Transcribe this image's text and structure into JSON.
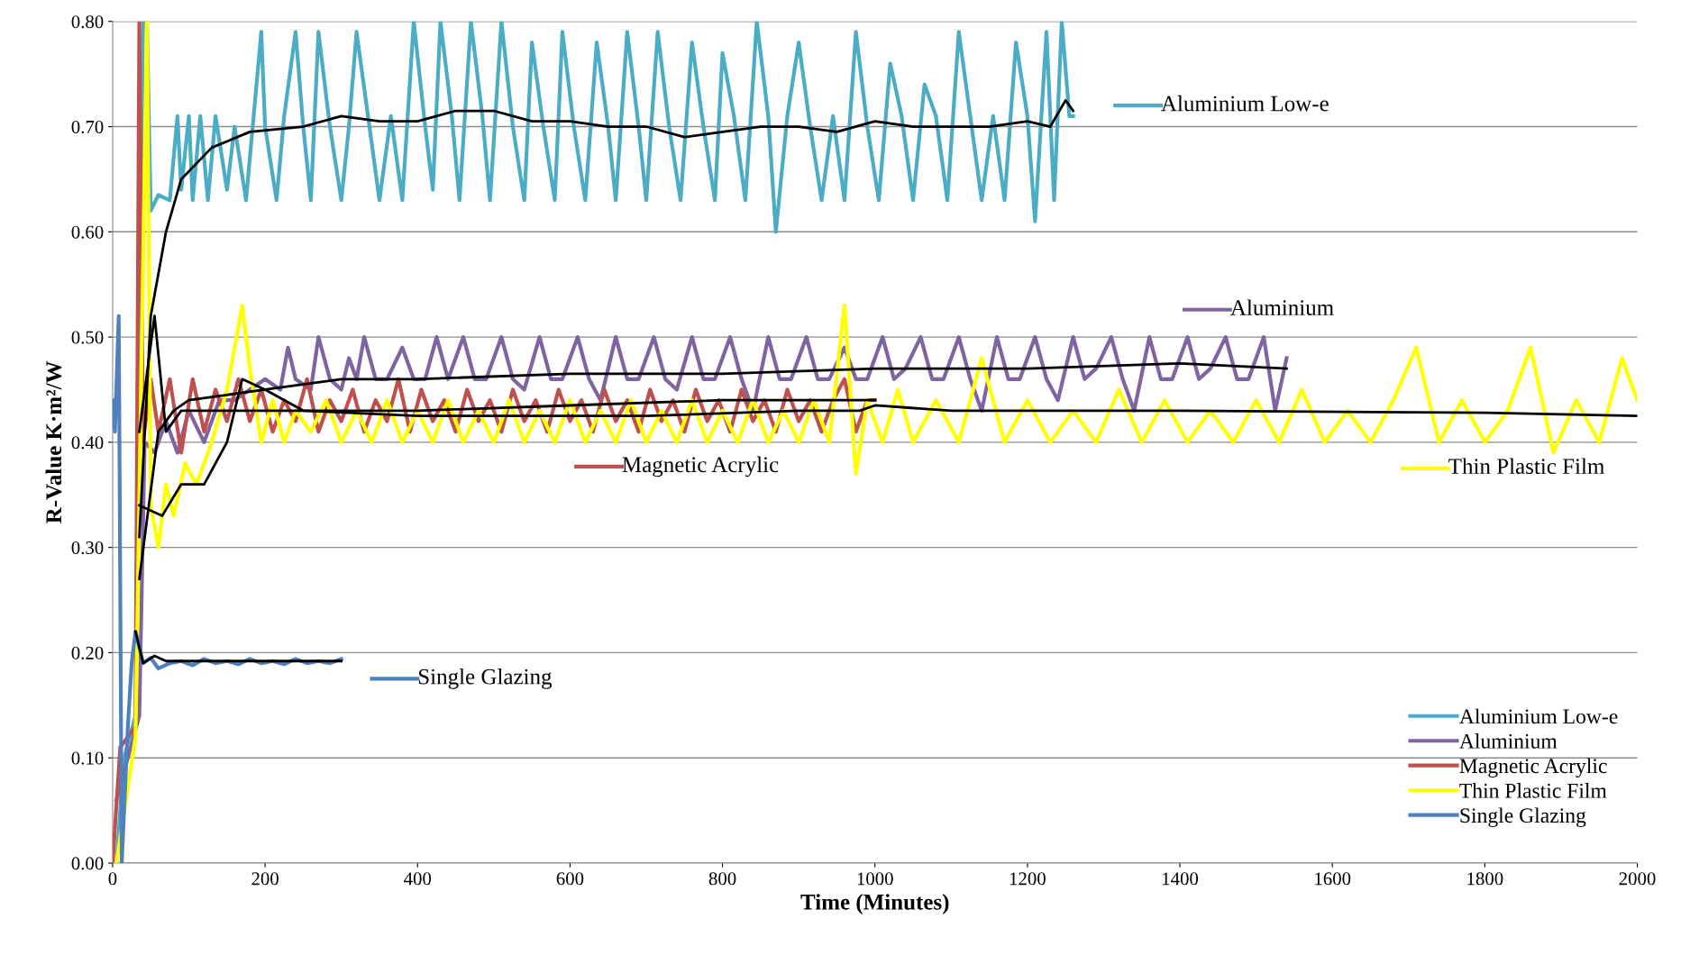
{
  "chart_data": {
    "type": "line",
    "xlabel": "Time (Minutes)",
    "ylabel": "R-Value K·m²/W",
    "xlim": [
      0,
      2000
    ],
    "xticks": [
      0,
      200,
      400,
      600,
      800,
      1000,
      1200,
      1400,
      1600,
      1800,
      2000
    ],
    "ylim": [
      0,
      0.8
    ],
    "yticks": [
      {
        "value": 0,
        "label": "0.00"
      },
      {
        "value": 0.1,
        "label": "0.10"
      },
      {
        "value": 0.2,
        "label": "0.20"
      },
      {
        "value": 0.3,
        "label": "0.30"
      },
      {
        "value": 0.4,
        "label": "0.40"
      },
      {
        "value": 0.5,
        "label": "0.50"
      },
      {
        "value": 0.6,
        "label": "0.60"
      },
      {
        "value": 0.7,
        "label": "0.70"
      },
      {
        "value": 0.8,
        "label": "0.80"
      }
    ],
    "grid": "y",
    "legend": "bottom right",
    "marker": "none",
    "line_style": "solid",
    "series": [
      {
        "name": "Aluminium Low-e",
        "color": "#4bacc6",
        "x": [
          5,
          15,
          30,
          40,
          45,
          50,
          60,
          75,
          85,
          90,
          100,
          105,
          115,
          125,
          135,
          150,
          160,
          175,
          185,
          195,
          200,
          215,
          225,
          240,
          250,
          260,
          270,
          285,
          300,
          310,
          320,
          335,
          350,
          365,
          380,
          395,
          410,
          420,
          430,
          445,
          455,
          470,
          485,
          495,
          510,
          525,
          540,
          550,
          565,
          580,
          590,
          605,
          620,
          635,
          650,
          660,
          675,
          690,
          700,
          715,
          730,
          745,
          760,
          775,
          790,
          800,
          815,
          830,
          845,
          860,
          870,
          885,
          900,
          915,
          930,
          945,
          960,
          975,
          990,
          1005,
          1020,
          1035,
          1050,
          1065,
          1080,
          1095,
          1110,
          1125,
          1140,
          1155,
          1170,
          1185,
          1200,
          1210,
          1225,
          1235,
          1245,
          1255,
          1260
        ],
        "values": [
          0.0,
          0.1,
          0.14,
          0.8,
          0.8,
          0.62,
          0.635,
          0.63,
          0.71,
          0.64,
          0.71,
          0.63,
          0.71,
          0.63,
          0.71,
          0.64,
          0.7,
          0.63,
          0.71,
          0.79,
          0.7,
          0.63,
          0.71,
          0.79,
          0.7,
          0.63,
          0.79,
          0.7,
          0.63,
          0.7,
          0.79,
          0.71,
          0.63,
          0.71,
          0.63,
          0.8,
          0.7,
          0.64,
          0.8,
          0.71,
          0.63,
          0.8,
          0.71,
          0.63,
          0.8,
          0.7,
          0.63,
          0.78,
          0.7,
          0.63,
          0.79,
          0.7,
          0.63,
          0.78,
          0.7,
          0.63,
          0.79,
          0.7,
          0.63,
          0.79,
          0.7,
          0.63,
          0.78,
          0.7,
          0.63,
          0.77,
          0.71,
          0.63,
          0.8,
          0.71,
          0.6,
          0.71,
          0.78,
          0.7,
          0.63,
          0.71,
          0.63,
          0.79,
          0.7,
          0.63,
          0.76,
          0.71,
          0.63,
          0.74,
          0.71,
          0.63,
          0.79,
          0.71,
          0.63,
          0.71,
          0.63,
          0.78,
          0.71,
          0.61,
          0.79,
          0.63,
          0.8,
          0.71,
          0.71
        ]
      },
      {
        "name": "Aluminium",
        "color": "#8064a2",
        "x": [
          5,
          20,
          35,
          42,
          55,
          70,
          85,
          100,
          120,
          140,
          160,
          180,
          200,
          220,
          230,
          240,
          260,
          270,
          285,
          300,
          310,
          320,
          330,
          345,
          360,
          380,
          395,
          410,
          425,
          440,
          460,
          475,
          490,
          510,
          525,
          540,
          560,
          575,
          590,
          610,
          625,
          640,
          660,
          675,
          690,
          710,
          725,
          740,
          760,
          775,
          790,
          810,
          825,
          840,
          860,
          875,
          890,
          910,
          925,
          940,
          960,
          975,
          990,
          1010,
          1025,
          1040,
          1060,
          1075,
          1090,
          1110,
          1125,
          1140,
          1160,
          1175,
          1190,
          1210,
          1225,
          1240,
          1260,
          1275,
          1290,
          1310,
          1325,
          1340,
          1360,
          1375,
          1390,
          1410,
          1425,
          1440,
          1460,
          1475,
          1490,
          1510,
          1525,
          1540
        ],
        "values": [
          0.06,
          0.1,
          0.14,
          0.4,
          0.39,
          0.42,
          0.39,
          0.43,
          0.4,
          0.44,
          0.44,
          0.45,
          0.46,
          0.45,
          0.49,
          0.46,
          0.45,
          0.5,
          0.46,
          0.45,
          0.48,
          0.46,
          0.5,
          0.46,
          0.46,
          0.49,
          0.46,
          0.46,
          0.5,
          0.46,
          0.5,
          0.46,
          0.46,
          0.5,
          0.46,
          0.45,
          0.5,
          0.46,
          0.46,
          0.5,
          0.46,
          0.44,
          0.5,
          0.46,
          0.46,
          0.5,
          0.46,
          0.45,
          0.5,
          0.46,
          0.46,
          0.5,
          0.46,
          0.43,
          0.5,
          0.46,
          0.46,
          0.5,
          0.46,
          0.46,
          0.49,
          0.46,
          0.46,
          0.5,
          0.46,
          0.47,
          0.5,
          0.46,
          0.46,
          0.5,
          0.46,
          0.43,
          0.5,
          0.46,
          0.46,
          0.5,
          0.46,
          0.44,
          0.5,
          0.46,
          0.47,
          0.5,
          0.46,
          0.43,
          0.5,
          0.46,
          0.46,
          0.5,
          0.46,
          0.47,
          0.5,
          0.46,
          0.46,
          0.5,
          0.43,
          0.48
        ]
      },
      {
        "name": "Magnetic Acrylic",
        "color": "#c0504d",
        "x": [
          0,
          10,
          30,
          35,
          40,
          50,
          60,
          75,
          90,
          105,
          120,
          135,
          150,
          165,
          180,
          195,
          210,
          225,
          240,
          255,
          270,
          285,
          300,
          315,
          330,
          345,
          360,
          375,
          390,
          405,
          420,
          435,
          450,
          465,
          480,
          495,
          510,
          525,
          540,
          555,
          570,
          585,
          600,
          615,
          630,
          645,
          660,
          675,
          690,
          705,
          720,
          735,
          750,
          765,
          780,
          795,
          810,
          825,
          840,
          855,
          870,
          885,
          900,
          915,
          930,
          945,
          960,
          975,
          990,
          1000
        ],
        "values": [
          0.0,
          0.11,
          0.13,
          0.8,
          0.4,
          0.46,
          0.41,
          0.46,
          0.39,
          0.46,
          0.41,
          0.45,
          0.42,
          0.46,
          0.42,
          0.45,
          0.41,
          0.44,
          0.42,
          0.46,
          0.41,
          0.44,
          0.42,
          0.45,
          0.41,
          0.44,
          0.42,
          0.46,
          0.41,
          0.45,
          0.42,
          0.44,
          0.41,
          0.45,
          0.42,
          0.44,
          0.41,
          0.45,
          0.42,
          0.44,
          0.41,
          0.45,
          0.42,
          0.44,
          0.41,
          0.45,
          0.42,
          0.44,
          0.41,
          0.45,
          0.42,
          0.44,
          0.41,
          0.45,
          0.42,
          0.44,
          0.41,
          0.45,
          0.42,
          0.44,
          0.41,
          0.45,
          0.42,
          0.44,
          0.41,
          0.44,
          0.46,
          0.41,
          0.44,
          0.44
        ]
      },
      {
        "name": "Thin Plastic Film",
        "color": "#ffff00",
        "x": [
          5,
          30,
          45,
          50,
          60,
          70,
          80,
          95,
          110,
          130,
          150,
          170,
          180,
          195,
          210,
          225,
          240,
          260,
          280,
          300,
          320,
          340,
          360,
          380,
          400,
          420,
          440,
          460,
          480,
          500,
          520,
          540,
          560,
          580,
          600,
          620,
          640,
          660,
          680,
          700,
          720,
          740,
          760,
          780,
          800,
          820,
          840,
          860,
          880,
          900,
          920,
          940,
          960,
          975,
          990,
          1010,
          1030,
          1050,
          1080,
          1110,
          1140,
          1170,
          1200,
          1230,
          1260,
          1290,
          1320,
          1350,
          1380,
          1410,
          1440,
          1470,
          1500,
          1530,
          1560,
          1590,
          1620,
          1650,
          1680,
          1710,
          1740,
          1770,
          1800,
          1830,
          1860,
          1890,
          1920,
          1950,
          1980,
          2000
        ],
        "values": [
          0.0,
          0.12,
          0.8,
          0.34,
          0.3,
          0.36,
          0.33,
          0.38,
          0.36,
          0.4,
          0.45,
          0.53,
          0.47,
          0.4,
          0.44,
          0.4,
          0.43,
          0.41,
          0.44,
          0.4,
          0.43,
          0.4,
          0.44,
          0.4,
          0.43,
          0.4,
          0.44,
          0.4,
          0.43,
          0.4,
          0.44,
          0.4,
          0.43,
          0.4,
          0.44,
          0.4,
          0.43,
          0.4,
          0.44,
          0.4,
          0.43,
          0.4,
          0.44,
          0.4,
          0.43,
          0.4,
          0.44,
          0.4,
          0.43,
          0.4,
          0.44,
          0.4,
          0.53,
          0.37,
          0.44,
          0.4,
          0.45,
          0.4,
          0.44,
          0.4,
          0.48,
          0.4,
          0.44,
          0.4,
          0.43,
          0.4,
          0.45,
          0.4,
          0.44,
          0.4,
          0.43,
          0.4,
          0.44,
          0.4,
          0.45,
          0.4,
          0.43,
          0.4,
          0.44,
          0.49,
          0.4,
          0.44,
          0.4,
          0.43,
          0.49,
          0.39,
          0.44,
          0.4,
          0.48,
          0.44
        ]
      },
      {
        "name": "Single Glazing",
        "color": "#4f81bd",
        "x": [
          0,
          3,
          8,
          12,
          20,
          25,
          30,
          40,
          50,
          60,
          75,
          90,
          105,
          120,
          135,
          150,
          165,
          180,
          195,
          210,
          225,
          240,
          255,
          270,
          285,
          300
        ],
        "values": [
          0.44,
          0.41,
          0.52,
          0.0,
          0.13,
          0.19,
          0.22,
          0.19,
          0.195,
          0.185,
          0.19,
          0.192,
          0.188,
          0.194,
          0.19,
          0.192,
          0.189,
          0.194,
          0.19,
          0.192,
          0.189,
          0.194,
          0.19,
          0.192,
          0.19,
          0.194
        ]
      },
      {
        "color": "#000000",
        "x": [
          35,
          50,
          70,
          90,
          130,
          180,
          250,
          300,
          350,
          400,
          450,
          500,
          550,
          600,
          650,
          700,
          750,
          800,
          850,
          900,
          950,
          1000,
          1050,
          1100,
          1150,
          1200,
          1230,
          1250,
          1260
        ],
        "values": [
          0.31,
          0.52,
          0.6,
          0.65,
          0.68,
          0.695,
          0.7,
          0.71,
          0.705,
          0.705,
          0.715,
          0.715,
          0.705,
          0.705,
          0.7,
          0.7,
          0.69,
          0.695,
          0.7,
          0.7,
          0.695,
          0.705,
          0.7,
          0.7,
          0.7,
          0.705,
          0.7,
          0.725,
          0.715
        ]
      },
      {
        "color": "#000000",
        "x": [
          35,
          60,
          80,
          100,
          150,
          200,
          300,
          400,
          600,
          800,
          1000,
          1200,
          1400,
          1540
        ],
        "values": [
          0.27,
          0.41,
          0.43,
          0.44,
          0.445,
          0.45,
          0.46,
          0.46,
          0.465,
          0.465,
          0.47,
          0.47,
          0.475,
          0.47
        ]
      },
      {
        "color": "#000000",
        "x": [
          35,
          55,
          70,
          90,
          130,
          200,
          400,
          600,
          800,
          1000
        ],
        "values": [
          0.41,
          0.52,
          0.41,
          0.43,
          0.43,
          0.43,
          0.43,
          0.435,
          0.44,
          0.44
        ]
      },
      {
        "color": "#000000",
        "x": [
          35,
          65,
          90,
          120,
          150,
          170,
          200,
          250,
          400,
          700,
          900,
          980,
          1000,
          1100,
          1400,
          1800,
          2000
        ],
        "values": [
          0.34,
          0.33,
          0.36,
          0.36,
          0.4,
          0.46,
          0.45,
          0.43,
          0.425,
          0.425,
          0.43,
          0.43,
          0.435,
          0.43,
          0.43,
          0.428,
          0.425
        ]
      },
      {
        "color": "#000000",
        "x": [
          30,
          40,
          55,
          70,
          100,
          300
        ],
        "values": [
          0.22,
          0.19,
          0.197,
          0.192,
          0.192,
          0.192
        ]
      }
    ],
    "annotations": [
      "Aluminium Low-e",
      "Aluminium",
      "Magnetic Acrylic",
      "Thin Plastic Film",
      "Single Glazing"
    ]
  }
}
